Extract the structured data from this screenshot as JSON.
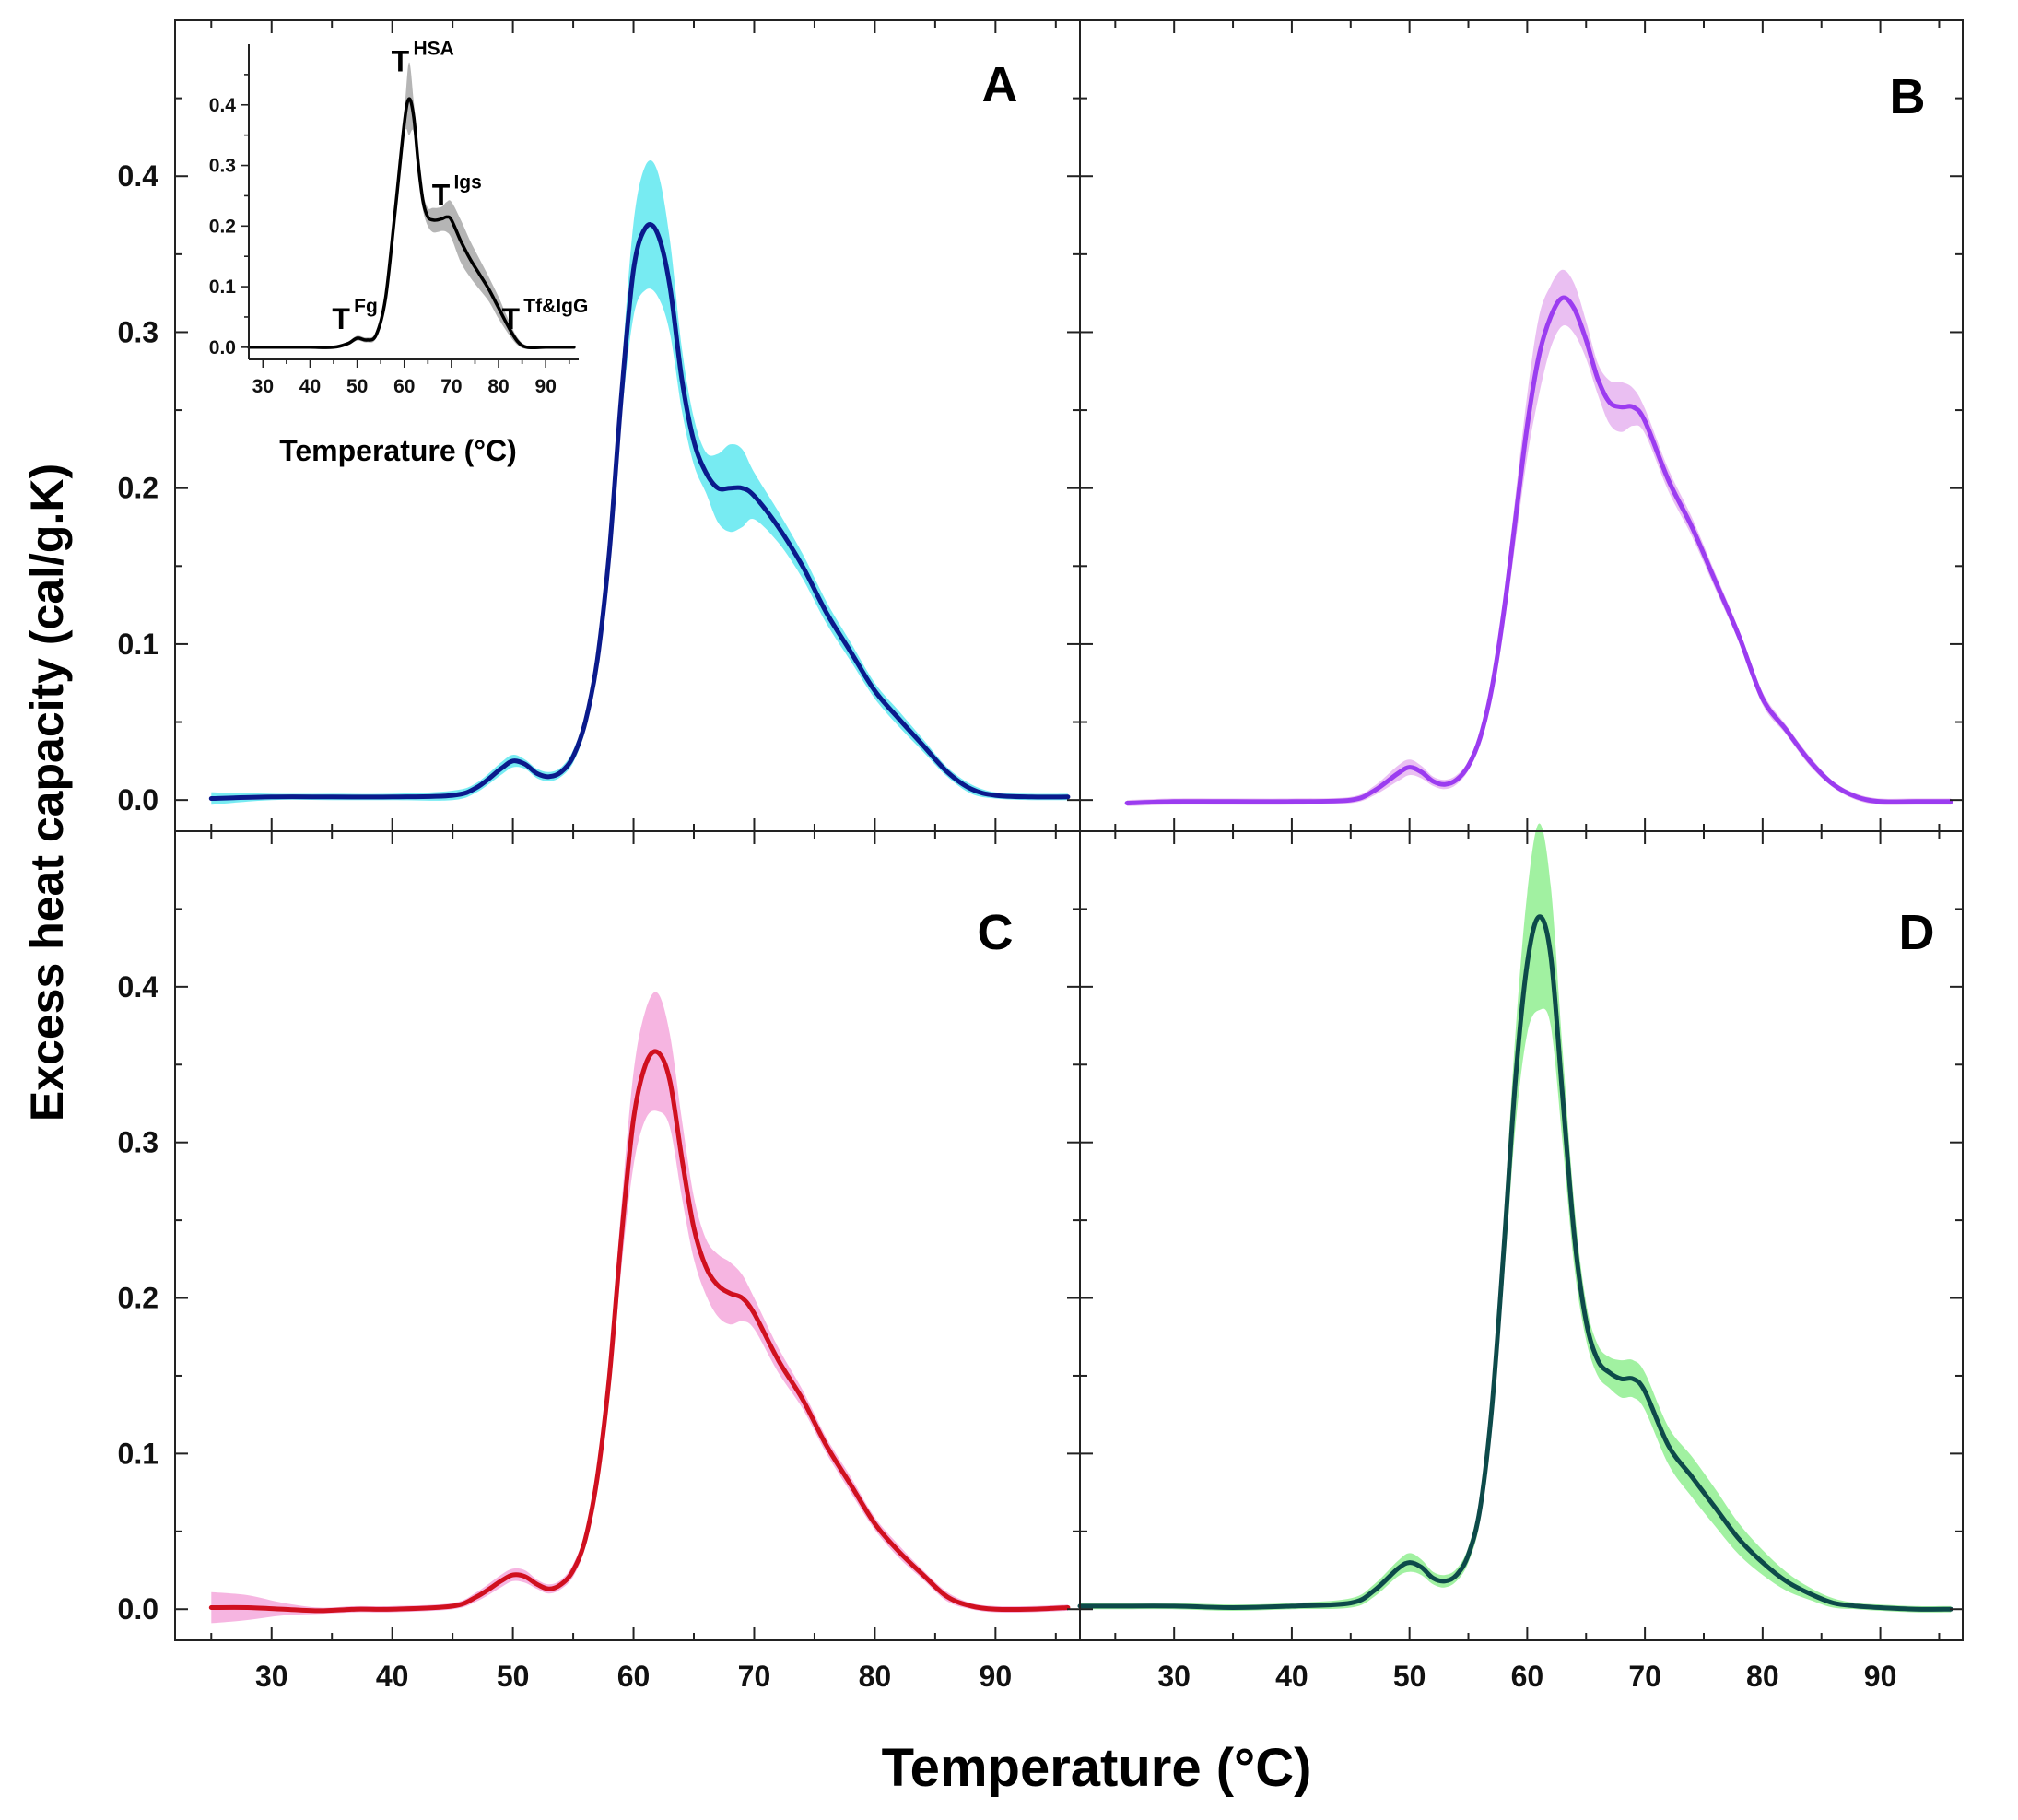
{
  "figure": {
    "ylabel": "Excess heat capacity (cal/g.K)",
    "xlabel": "Temperature (°C)",
    "background": "#ffffff"
  },
  "chart_data": [
    {
      "id": "A",
      "type": "line",
      "panel_label": "A",
      "xlim": [
        22,
        97
      ],
      "ylim": [
        -0.02,
        0.5
      ],
      "xticks": [
        30,
        40,
        50,
        60,
        70,
        80,
        90
      ],
      "yticks": [
        0.0,
        0.1,
        0.2,
        0.3,
        0.4
      ],
      "line_color": "#0a1a8c",
      "band_color": "#5fe8f0",
      "x": [
        25,
        30,
        35,
        40,
        45,
        47,
        49,
        50,
        51,
        52,
        53,
        54,
        55,
        56,
        57,
        58,
        59,
        60,
        61,
        62,
        63,
        64,
        65,
        66,
        67,
        68,
        69,
        70,
        72,
        74,
        76,
        78,
        80,
        82,
        84,
        86,
        88,
        90,
        93,
        96
      ],
      "mean": [
        0.001,
        0.002,
        0.002,
        0.002,
        0.003,
        0.008,
        0.02,
        0.025,
        0.023,
        0.017,
        0.015,
        0.018,
        0.028,
        0.05,
        0.09,
        0.16,
        0.26,
        0.34,
        0.367,
        0.363,
        0.33,
        0.27,
        0.23,
        0.21,
        0.2,
        0.2,
        0.2,
        0.195,
        0.175,
        0.15,
        0.12,
        0.095,
        0.07,
        0.052,
        0.035,
        0.018,
        0.007,
        0.003,
        0.002,
        0.002
      ],
      "band": [
        0.004,
        0.002,
        0.002,
        0.002,
        0.003,
        0.003,
        0.004,
        0.004,
        0.003,
        0.003,
        0.003,
        0.003,
        0.004,
        0.005,
        0.006,
        0.01,
        0.015,
        0.03,
        0.04,
        0.04,
        0.03,
        0.02,
        0.015,
        0.013,
        0.022,
        0.028,
        0.025,
        0.015,
        0.01,
        0.008,
        0.007,
        0.006,
        0.005,
        0.005,
        0.004,
        0.003,
        0.003,
        0.002,
        0.002,
        0.002
      ]
    },
    {
      "id": "B",
      "type": "line",
      "panel_label": "B",
      "xlim": [
        22,
        97
      ],
      "ylim": [
        -0.02,
        0.5
      ],
      "xticks": [
        30,
        40,
        50,
        60,
        70,
        80,
        90
      ],
      "yticks": [
        0.0,
        0.1,
        0.2,
        0.3,
        0.4
      ],
      "line_color": "#9b3cf0",
      "band_color": "#e6b4f0",
      "x": [
        26,
        30,
        35,
        40,
        45,
        47,
        49,
        50,
        51,
        52,
        53,
        54,
        55,
        56,
        57,
        58,
        59,
        60,
        61,
        62,
        63,
        64,
        65,
        66,
        67,
        68,
        69,
        70,
        72,
        74,
        76,
        78,
        80,
        82,
        84,
        86,
        88,
        90,
        93,
        96
      ],
      "mean": [
        -0.002,
        -0.001,
        -0.001,
        -0.001,
        0.0,
        0.006,
        0.017,
        0.021,
        0.018,
        0.012,
        0.01,
        0.013,
        0.022,
        0.04,
        0.072,
        0.12,
        0.18,
        0.24,
        0.285,
        0.31,
        0.322,
        0.315,
        0.295,
        0.27,
        0.255,
        0.252,
        0.252,
        0.243,
        0.205,
        0.175,
        0.14,
        0.105,
        0.065,
        0.045,
        0.025,
        0.01,
        0.002,
        -0.001,
        -0.001,
        -0.001
      ],
      "band": [
        0.002,
        0.002,
        0.002,
        0.002,
        0.002,
        0.003,
        0.005,
        0.005,
        0.004,
        0.003,
        0.003,
        0.003,
        0.003,
        0.004,
        0.006,
        0.01,
        0.015,
        0.02,
        0.025,
        0.02,
        0.018,
        0.016,
        0.012,
        0.01,
        0.014,
        0.016,
        0.012,
        0.008,
        0.007,
        0.006,
        0.005,
        0.004,
        0.004,
        0.003,
        0.003,
        0.002,
        0.002,
        0.002,
        0.002,
        0.002
      ]
    },
    {
      "id": "C",
      "type": "line",
      "panel_label": "C",
      "xlim": [
        22,
        97
      ],
      "ylim": [
        -0.02,
        0.5
      ],
      "xticks": [
        30,
        40,
        50,
        60,
        70,
        80,
        90
      ],
      "yticks": [
        0.0,
        0.1,
        0.2,
        0.3,
        0.4
      ],
      "line_color": "#d0101f",
      "band_color": "#f5a8dc",
      "x": [
        25,
        28,
        31,
        34,
        37,
        40,
        45,
        47,
        49,
        50,
        51,
        52,
        53,
        54,
        55,
        56,
        57,
        58,
        59,
        60,
        61,
        62,
        63,
        64,
        65,
        66,
        67,
        68,
        69,
        70,
        72,
        74,
        76,
        78,
        80,
        82,
        84,
        86,
        88,
        90,
        93,
        96
      ],
      "mean": [
        0.001,
        0.001,
        0.0,
        -0.001,
        0.0,
        0.0,
        0.002,
        0.008,
        0.018,
        0.022,
        0.021,
        0.016,
        0.013,
        0.016,
        0.025,
        0.045,
        0.085,
        0.15,
        0.24,
        0.315,
        0.35,
        0.358,
        0.34,
        0.29,
        0.245,
        0.22,
        0.208,
        0.203,
        0.2,
        0.19,
        0.16,
        0.135,
        0.105,
        0.08,
        0.055,
        0.037,
        0.022,
        0.008,
        0.002,
        0.0,
        0.0,
        0.001
      ],
      "band": [
        0.01,
        0.008,
        0.004,
        0.002,
        0.002,
        0.002,
        0.002,
        0.003,
        0.004,
        0.004,
        0.004,
        0.003,
        0.003,
        0.003,
        0.004,
        0.005,
        0.008,
        0.012,
        0.02,
        0.03,
        0.035,
        0.038,
        0.03,
        0.025,
        0.02,
        0.018,
        0.02,
        0.02,
        0.015,
        0.01,
        0.008,
        0.006,
        0.005,
        0.005,
        0.004,
        0.004,
        0.003,
        0.003,
        0.002,
        0.002,
        0.002,
        0.002
      ]
    },
    {
      "id": "D",
      "type": "line",
      "panel_label": "D",
      "xlim": [
        22,
        97
      ],
      "ylim": [
        -0.02,
        0.5
      ],
      "xticks": [
        30,
        40,
        50,
        60,
        70,
        80,
        90
      ],
      "yticks": [
        0.0,
        0.1,
        0.2,
        0.3,
        0.4
      ],
      "line_color": "#0d4a4a",
      "band_color": "#90ee90",
      "x": [
        22,
        25,
        30,
        35,
        40,
        45,
        47,
        49,
        50,
        51,
        52,
        53,
        54,
        55,
        56,
        57,
        58,
        59,
        60,
        61,
        62,
        63,
        64,
        65,
        66,
        67,
        68,
        69,
        70,
        72,
        74,
        76,
        78,
        80,
        82,
        84,
        86,
        88,
        90,
        93,
        96
      ],
      "mean": [
        0.002,
        0.002,
        0.002,
        0.001,
        0.002,
        0.004,
        0.012,
        0.026,
        0.03,
        0.027,
        0.02,
        0.018,
        0.022,
        0.035,
        0.065,
        0.13,
        0.23,
        0.34,
        0.415,
        0.445,
        0.42,
        0.33,
        0.24,
        0.185,
        0.16,
        0.152,
        0.148,
        0.148,
        0.14,
        0.105,
        0.085,
        0.065,
        0.045,
        0.03,
        0.018,
        0.01,
        0.004,
        0.002,
        0.001,
        0.0,
        0.0
      ],
      "band": [
        0.002,
        0.002,
        0.002,
        0.002,
        0.002,
        0.003,
        0.004,
        0.005,
        0.006,
        0.005,
        0.004,
        0.004,
        0.004,
        0.005,
        0.008,
        0.012,
        0.02,
        0.03,
        0.045,
        0.06,
        0.045,
        0.03,
        0.02,
        0.012,
        0.01,
        0.01,
        0.012,
        0.012,
        0.012,
        0.012,
        0.013,
        0.012,
        0.01,
        0.008,
        0.006,
        0.004,
        0.003,
        0.002,
        0.002,
        0.002,
        0.002
      ]
    },
    {
      "id": "inset",
      "type": "line",
      "xlabel": "Temperature (°C)",
      "xlim": [
        27,
        97
      ],
      "ylim": [
        -0.02,
        0.5
      ],
      "xticks": [
        30,
        40,
        50,
        60,
        70,
        80,
        90
      ],
      "yticks": [
        0.0,
        0.1,
        0.2,
        0.3,
        0.4
      ],
      "line_color": "#000000",
      "band_color": "#a8a8a8",
      "x": [
        27,
        30,
        35,
        40,
        45,
        48,
        50,
        52,
        54,
        56,
        58,
        60,
        61,
        62,
        63,
        64,
        65,
        66,
        67,
        68,
        69,
        70,
        72,
        74,
        76,
        78,
        80,
        82,
        84,
        86,
        90,
        96
      ],
      "mean": [
        0.0,
        0.0,
        0.0,
        0.0,
        0.0,
        0.006,
        0.015,
        0.012,
        0.02,
        0.08,
        0.22,
        0.37,
        0.41,
        0.38,
        0.3,
        0.24,
        0.215,
        0.21,
        0.21,
        0.212,
        0.215,
        0.21,
        0.175,
        0.145,
        0.12,
        0.095,
        0.065,
        0.035,
        0.01,
        0.0,
        0.0,
        0.0
      ],
      "band": [
        0.002,
        0.002,
        0.002,
        0.002,
        0.002,
        0.003,
        0.004,
        0.004,
        0.005,
        0.008,
        0.015,
        0.02,
        0.06,
        0.025,
        0.02,
        0.015,
        0.015,
        0.02,
        0.02,
        0.02,
        0.025,
        0.03,
        0.035,
        0.03,
        0.025,
        0.02,
        0.018,
        0.012,
        0.006,
        0.003,
        0.002,
        0.002
      ],
      "annotations": [
        {
          "base": "T",
          "sup": "Fg",
          "x": 50.5
        },
        {
          "base": "T",
          "sup": "HSA",
          "x": 61.5
        },
        {
          "base": "T",
          "sup": "Igs",
          "x": 70.5
        },
        {
          "base": "T",
          "sup": "Tf&IgG",
          "x": 84.5
        }
      ]
    }
  ]
}
